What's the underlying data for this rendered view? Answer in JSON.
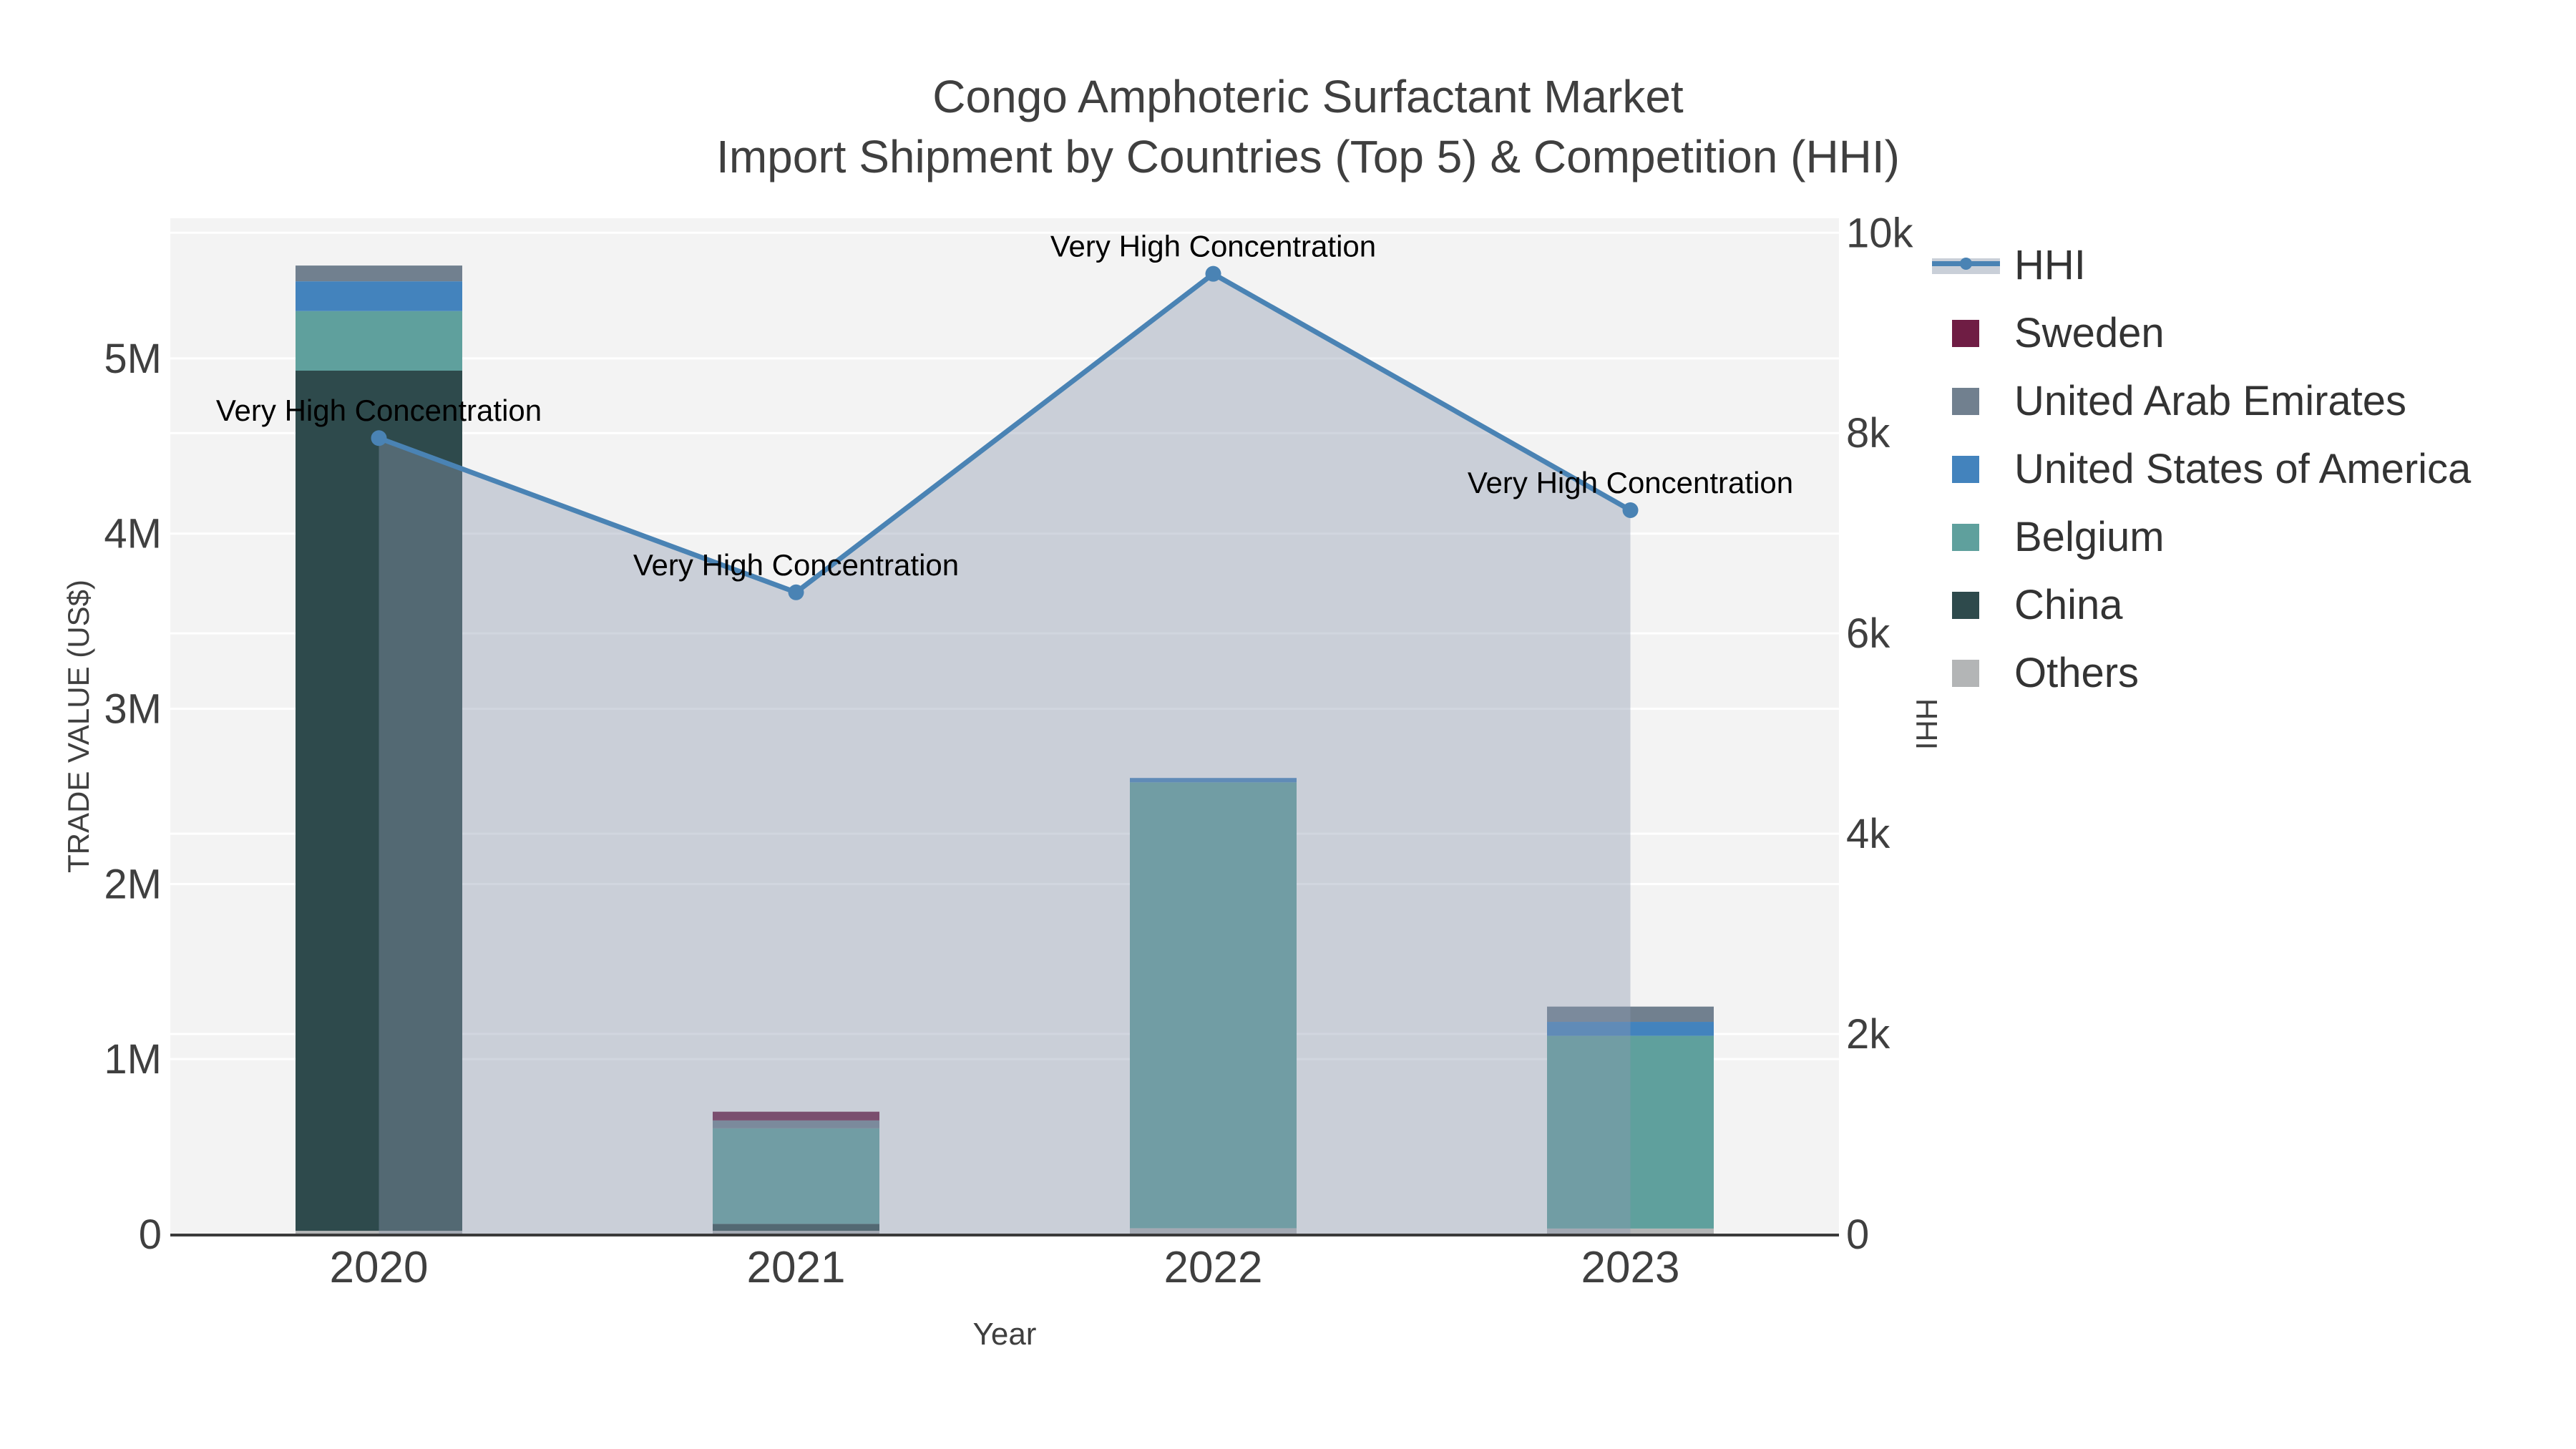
{
  "chart_data": {
    "type": "bar+line",
    "title": "Congo Amphoteric Surfactant Market",
    "subtitle": "Import Shipment by Countries (Top 5) & Competition (HHI)",
    "xlabel": "Year",
    "ylabel_left": "TRADE VALUE (US$)",
    "ylabel_right": "HHI",
    "categories": [
      "2020",
      "2021",
      "2022",
      "2023"
    ],
    "stack_order": [
      "Others",
      "China",
      "Belgium",
      "United States of America",
      "United Arab Emirates",
      "Sweden"
    ],
    "series": [
      {
        "name": "Sweden",
        "color": "#6f1d44",
        "values": [
          0,
          50000,
          0,
          0
        ]
      },
      {
        "name": "United Arab Emirates",
        "color": "#71808f",
        "values": [
          90000,
          45000,
          0,
          87000
        ]
      },
      {
        "name": "United States of America",
        "color": "#4383bd",
        "values": [
          170000,
          0,
          25000,
          80000
        ]
      },
      {
        "name": "Belgium",
        "color": "#5fa09d",
        "values": [
          340000,
          545000,
          2545000,
          1100000
        ]
      },
      {
        "name": "China",
        "color": "#2e4a4c",
        "values": [
          4910000,
          40000,
          0,
          0
        ]
      },
      {
        "name": "Others",
        "color": "#b3b5b6",
        "values": [
          20000,
          20000,
          35000,
          33000
        ]
      }
    ],
    "hhi_series": {
      "name": "HHI",
      "color": "#4a83b4",
      "area_fill": "rgba(140,152,175,0.40)",
      "values": [
        7950,
        6410,
        9590,
        7230
      ]
    },
    "annotations": {
      "text": "Very High Concentration",
      "per_point": [
        "Very High Concentration",
        "Very High Concentration",
        "Very High Concentration",
        "Very High Concentration"
      ]
    },
    "axes": {
      "left": {
        "ticks": [
          "0",
          "1M",
          "2M",
          "3M",
          "4M",
          "5M"
        ],
        "tick_values": [
          0,
          1000000,
          2000000,
          3000000,
          4000000,
          5000000
        ],
        "range": [
          0,
          5800000
        ]
      },
      "right": {
        "ticks": [
          "0",
          "2k",
          "4k",
          "6k",
          "8k",
          "10k"
        ],
        "tick_values": [
          0,
          2000,
          4000,
          6000,
          8000,
          10000
        ],
        "range": [
          0,
          10145
        ]
      },
      "x": {
        "ticks": [
          "2020",
          "2021",
          "2022",
          "2023"
        ]
      }
    },
    "legend_entries": [
      "HHI",
      "Sweden",
      "United Arab Emirates",
      "United States of America",
      "Belgium",
      "China",
      "Others"
    ],
    "legend_position": "right",
    "grid": true,
    "colors": {
      "plot_bg": "#f3f3f3",
      "grid": "#ffffff",
      "axis_line": "#3a3a3a",
      "tick_text": "#3f3f3f",
      "annotation_text": "#000000"
    }
  }
}
